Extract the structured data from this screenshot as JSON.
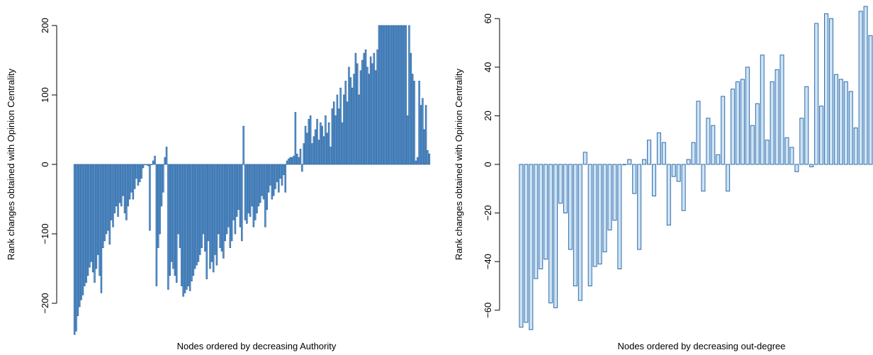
{
  "chart_data": [
    {
      "type": "bar",
      "xlabel": "Nodes ordered by decreasing Authority",
      "ylabel": "Rank changes obtained with Opinion Centrality",
      "ylim": [
        -245,
        205
      ],
      "yticks": [
        -200,
        -100,
        0,
        100,
        200
      ],
      "grid": false,
      "bar_fill": "#6a9ed0",
      "bar_stroke": "#2f6aa8",
      "values": [
        -245,
        -240,
        -218,
        -205,
        -195,
        -188,
        -175,
        -170,
        -160,
        -148,
        -140,
        -155,
        -170,
        -150,
        -130,
        -160,
        -185,
        -120,
        -110,
        -100,
        -95,
        -115,
        -80,
        -90,
        -70,
        -60,
        -75,
        -55,
        -60,
        -45,
        -70,
        -80,
        -60,
        -50,
        -40,
        -50,
        -35,
        -20,
        -30,
        -25,
        -20,
        -5,
        0,
        0,
        -2,
        -95,
        0,
        5,
        12,
        -175,
        -120,
        -100,
        -60,
        -40,
        10,
        25,
        -180,
        -160,
        -140,
        -150,
        -160,
        -170,
        -100,
        -120,
        -175,
        -190,
        -185,
        -180,
        -175,
        -182,
        -168,
        -160,
        -150,
        -145,
        -140,
        -130,
        -120,
        -100,
        -125,
        -165,
        -110,
        -150,
        -140,
        -155,
        -130,
        -145,
        -100,
        -120,
        -125,
        -135,
        -110,
        -100,
        -90,
        -120,
        -110,
        -80,
        -100,
        -75,
        -65,
        -90,
        -110,
        55,
        -80,
        -85,
        -70,
        -75,
        -60,
        -90,
        -80,
        -70,
        -60,
        -55,
        -45,
        -50,
        -90,
        -65,
        -40,
        -30,
        -50,
        -45,
        -35,
        -25,
        -40,
        -20,
        -30,
        -15,
        -40,
        5,
        8,
        10,
        10,
        12,
        75,
        15,
        10,
        22,
        -10,
        30,
        55,
        45,
        65,
        70,
        30,
        40,
        50,
        65,
        35,
        60,
        55,
        40,
        70,
        45,
        60,
        25,
        80,
        90,
        70,
        100,
        80,
        110,
        60,
        100,
        120,
        90,
        140,
        125,
        110,
        130,
        160,
        145,
        100,
        135,
        150,
        160,
        165,
        140,
        130,
        155,
        145,
        160,
        135,
        165,
        200,
        200,
        200,
        200,
        200,
        200,
        200,
        200,
        200,
        200,
        200,
        200,
        200,
        200,
        200,
        200,
        200,
        70,
        200,
        160,
        130,
        120,
        5,
        10,
        120,
        85,
        95,
        50,
        85,
        20,
        15
      ],
      "ylim_display": null
    },
    {
      "type": "bar",
      "xlabel": "Nodes ordered by decreasing out-degree",
      "ylabel": "Rank changes obtained with Opinion Centrality",
      "ylim": [
        -68,
        66
      ],
      "yticks": [
        -60,
        -40,
        -20,
        0,
        20,
        40,
        60
      ],
      "grid": false,
      "bar_fill": "#cde4f6",
      "bar_stroke": "#2f6aa8",
      "values": [
        -67,
        -65,
        -68,
        -47,
        -43,
        -39,
        -57,
        -59,
        -16,
        -20,
        -35,
        -50,
        -56,
        5,
        -50,
        -42,
        -41,
        -36,
        -27,
        -23,
        -43,
        0,
        2,
        -12,
        -35,
        2,
        10,
        -13,
        13,
        9,
        -25,
        -5,
        -7,
        -19,
        2,
        9,
        26,
        -11,
        19,
        16,
        4,
        28,
        -11,
        31,
        34,
        35,
        40,
        16,
        25,
        45,
        10,
        34,
        39,
        45,
        11,
        7,
        -3,
        19,
        32,
        -1,
        58,
        24,
        62,
        60,
        37,
        35,
        34,
        30,
        15,
        63,
        65,
        53
      ]
    }
  ]
}
